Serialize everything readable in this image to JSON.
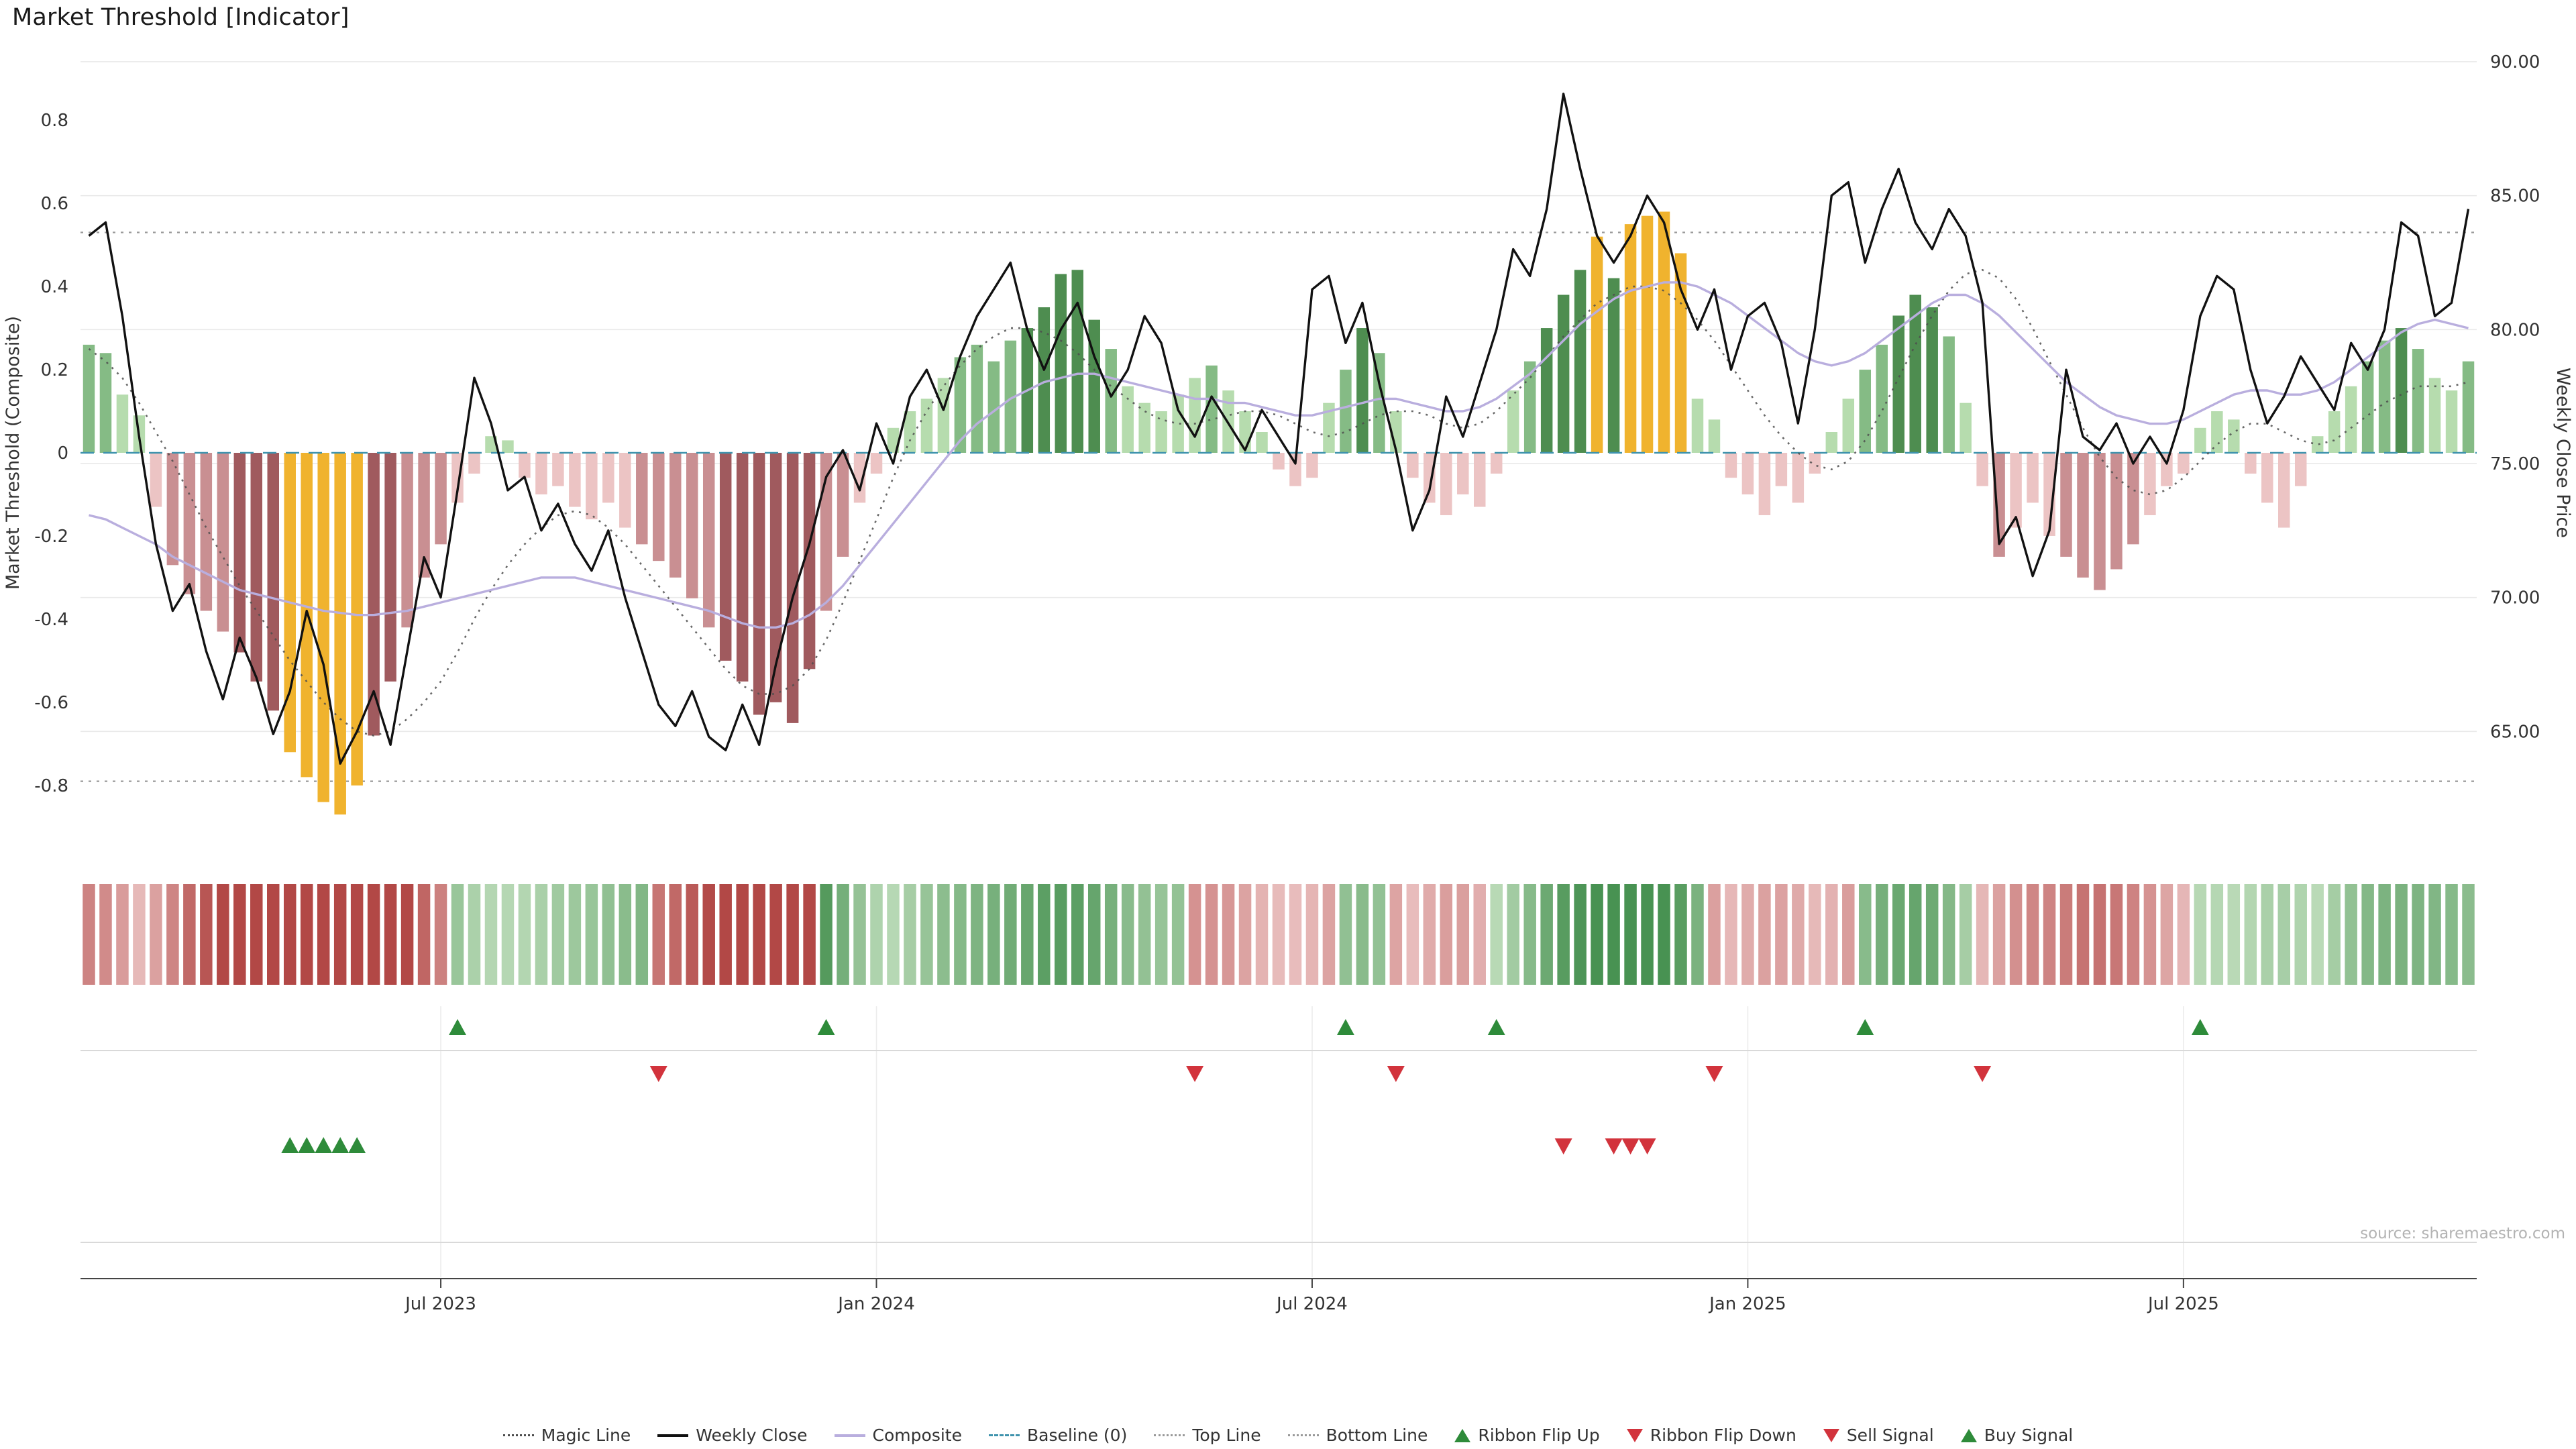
{
  "title": "Market Threshold [Indicator]",
  "source": "source: sharemaestro.com",
  "axes": {
    "left_label": "Market Threshold (Composite)",
    "right_label": "Weekly Close Price",
    "left_ticks": [
      {
        "label": "0.8",
        "value": 0.8
      },
      {
        "label": "0.6",
        "value": 0.6
      },
      {
        "label": "0.4",
        "value": 0.4
      },
      {
        "label": "0.2",
        "value": 0.2
      },
      {
        "label": "0",
        "value": 0
      },
      {
        "label": "-0.2",
        "value": -0.2
      },
      {
        "label": "-0.4",
        "value": -0.4
      },
      {
        "label": "-0.6",
        "value": -0.6
      },
      {
        "label": "-0.8",
        "value": -0.8
      }
    ],
    "right_ticks": [
      {
        "label": "90.00",
        "value": 90
      },
      {
        "label": "85.00",
        "value": 85
      },
      {
        "label": "80.00",
        "value": 80
      },
      {
        "label": "75.00",
        "value": 75
      },
      {
        "label": "70.00",
        "value": 70
      },
      {
        "label": "65.00",
        "value": 65
      }
    ],
    "x_ticks": [
      {
        "label": "Jul 2023",
        "week": 21
      },
      {
        "label": "Jan 2024",
        "week": 47
      },
      {
        "label": "Jul 2024",
        "week": 73
      },
      {
        "label": "Jan 2025",
        "week": 99
      },
      {
        "label": "Jul 2025",
        "week": 125
      }
    ]
  },
  "chart_data": {
    "type": "bar",
    "title": "Market Threshold [Indicator]",
    "xlabel": "",
    "ylabel_left": "Market Threshold (Composite)",
    "ylabel_right": "Weekly Close Price",
    "x_unit": "week",
    "ylim_left": [
      -0.96,
      0.96
    ],
    "ylim_right": [
      60.5,
      90.3
    ],
    "reference_lines": {
      "baseline": 0,
      "top_line": 0.53,
      "bottom_line": -0.79
    },
    "composite_bars": [
      0.26,
      0.24,
      0.14,
      0.09,
      -0.13,
      -0.27,
      -0.34,
      -0.38,
      -0.43,
      -0.48,
      -0.55,
      -0.62,
      -0.72,
      -0.78,
      -0.84,
      -0.87,
      -0.8,
      -0.68,
      -0.55,
      -0.42,
      -0.3,
      -0.22,
      -0.12,
      -0.05,
      0.04,
      0.03,
      -0.06,
      -0.1,
      -0.08,
      -0.13,
      -0.16,
      -0.12,
      -0.18,
      -0.22,
      -0.26,
      -0.3,
      -0.35,
      -0.42,
      -0.5,
      -0.55,
      -0.63,
      -0.6,
      -0.65,
      -0.52,
      -0.38,
      -0.25,
      -0.12,
      -0.05,
      0.06,
      0.1,
      0.13,
      0.18,
      0.23,
      0.26,
      0.22,
      0.27,
      0.3,
      0.35,
      0.43,
      0.44,
      0.32,
      0.25,
      0.16,
      0.12,
      0.1,
      0.14,
      0.18,
      0.21,
      0.15,
      0.1,
      0.05,
      -0.04,
      -0.08,
      -0.06,
      0.12,
      0.2,
      0.3,
      0.24,
      0.1,
      -0.06,
      -0.12,
      -0.15,
      -0.1,
      -0.13,
      -0.05,
      0.15,
      0.22,
      0.3,
      0.38,
      0.44,
      0.52,
      0.42,
      0.55,
      0.57,
      0.58,
      0.48,
      0.13,
      0.08,
      -0.06,
      -0.1,
      -0.15,
      -0.08,
      -0.12,
      -0.05,
      0.05,
      0.13,
      0.2,
      0.26,
      0.33,
      0.38,
      0.35,
      0.28,
      0.12,
      -0.08,
      -0.25,
      -0.18,
      -0.12,
      -0.2,
      -0.25,
      -0.3,
      -0.33,
      -0.28,
      -0.22,
      -0.15,
      -0.08,
      -0.05,
      0.06,
      0.1,
      0.08,
      -0.05,
      -0.12,
      -0.18,
      -0.08,
      0.04,
      0.1,
      0.16,
      0.22,
      0.27,
      0.3,
      0.25,
      0.18,
      0.15,
      0.22
    ],
    "gold_bar_indices": [
      12,
      13,
      14,
      15,
      16,
      90,
      92,
      93,
      94,
      95
    ],
    "weekly_close": [
      83.5,
      84.0,
      80.5,
      76.0,
      72.0,
      69.5,
      70.5,
      68.0,
      66.2,
      68.5,
      67.0,
      64.9,
      66.5,
      69.5,
      67.5,
      63.8,
      65.0,
      66.5,
      64.5,
      68.0,
      71.5,
      70.0,
      74.0,
      78.2,
      76.5,
      74.0,
      74.5,
      72.5,
      73.5,
      72.0,
      71.0,
      72.5,
      70.0,
      68.0,
      66.0,
      65.2,
      66.5,
      64.8,
      64.3,
      66.0,
      64.5,
      67.5,
      70.0,
      72.0,
      74.5,
      75.5,
      74.0,
      76.5,
      75.0,
      77.5,
      78.5,
      77.0,
      79.0,
      80.5,
      81.5,
      82.5,
      80.0,
      78.5,
      80.0,
      81.0,
      79.0,
      77.5,
      78.5,
      80.5,
      79.5,
      77.0,
      76.0,
      77.5,
      76.5,
      75.5,
      77.0,
      76.0,
      75.0,
      81.5,
      82.0,
      79.5,
      81.0,
      78.0,
      75.5,
      72.5,
      74.0,
      77.5,
      76.0,
      78.0,
      80.0,
      83.0,
      82.0,
      84.5,
      88.8,
      86.0,
      83.5,
      82.5,
      83.5,
      85.0,
      84.0,
      81.5,
      80.0,
      81.5,
      78.5,
      80.5,
      81.0,
      79.5,
      76.5,
      80.0,
      85.0,
      85.5,
      82.5,
      84.5,
      86.0,
      84.0,
      83.0,
      84.5,
      83.5,
      81.0,
      72.0,
      73.0,
      70.8,
      72.5,
      78.5,
      76.0,
      75.5,
      76.5,
      75.0,
      76.0,
      75.0,
      77.0,
      80.5,
      82.0,
      81.5,
      78.5,
      76.5,
      77.5,
      79.0,
      78.0,
      77.0,
      79.5,
      78.5,
      80.0,
      84.0,
      83.5,
      80.5,
      81.0,
      84.5
    ],
    "composite_line": [
      -0.15,
      -0.16,
      -0.18,
      -0.2,
      -0.22,
      -0.25,
      -0.27,
      -0.29,
      -0.31,
      -0.33,
      -0.34,
      -0.35,
      -0.36,
      -0.37,
      -0.38,
      -0.385,
      -0.39,
      -0.39,
      -0.385,
      -0.38,
      -0.37,
      -0.36,
      -0.35,
      -0.34,
      -0.33,
      -0.32,
      -0.31,
      -0.3,
      -0.3,
      -0.3,
      -0.31,
      -0.32,
      -0.33,
      -0.34,
      -0.35,
      -0.36,
      -0.37,
      -0.38,
      -0.395,
      -0.41,
      -0.42,
      -0.42,
      -0.41,
      -0.39,
      -0.36,
      -0.32,
      -0.27,
      -0.22,
      -0.17,
      -0.12,
      -0.07,
      -0.02,
      0.03,
      0.07,
      0.1,
      0.13,
      0.15,
      0.17,
      0.18,
      0.19,
      0.19,
      0.18,
      0.17,
      0.16,
      0.15,
      0.14,
      0.13,
      0.13,
      0.12,
      0.12,
      0.11,
      0.1,
      0.09,
      0.09,
      0.1,
      0.11,
      0.12,
      0.13,
      0.13,
      0.12,
      0.11,
      0.1,
      0.1,
      0.11,
      0.13,
      0.16,
      0.19,
      0.23,
      0.27,
      0.31,
      0.34,
      0.37,
      0.39,
      0.4,
      0.41,
      0.41,
      0.4,
      0.38,
      0.36,
      0.33,
      0.3,
      0.27,
      0.24,
      0.22,
      0.21,
      0.22,
      0.24,
      0.27,
      0.3,
      0.33,
      0.36,
      0.38,
      0.38,
      0.36,
      0.33,
      0.29,
      0.25,
      0.21,
      0.17,
      0.14,
      0.11,
      0.09,
      0.08,
      0.07,
      0.07,
      0.08,
      0.1,
      0.12,
      0.14,
      0.15,
      0.15,
      0.14,
      0.14,
      0.15,
      0.17,
      0.2,
      0.23,
      0.26,
      0.29,
      0.31,
      0.32,
      0.31,
      0.3
    ],
    "magic_line": [
      0.25,
      0.22,
      0.18,
      0.12,
      0.05,
      -0.02,
      -0.1,
      -0.18,
      -0.25,
      -0.32,
      -0.38,
      -0.44,
      -0.5,
      -0.55,
      -0.6,
      -0.64,
      -0.67,
      -0.68,
      -0.67,
      -0.64,
      -0.6,
      -0.55,
      -0.48,
      -0.4,
      -0.33,
      -0.27,
      -0.22,
      -0.18,
      -0.15,
      -0.14,
      -0.15,
      -0.18,
      -0.22,
      -0.27,
      -0.32,
      -0.37,
      -0.42,
      -0.47,
      -0.52,
      -0.56,
      -0.58,
      -0.58,
      -0.56,
      -0.52,
      -0.45,
      -0.36,
      -0.26,
      -0.16,
      -0.06,
      0.03,
      0.1,
      0.16,
      0.21,
      0.25,
      0.28,
      0.3,
      0.3,
      0.29,
      0.27,
      0.24,
      0.2,
      0.16,
      0.13,
      0.1,
      0.08,
      0.07,
      0.07,
      0.08,
      0.09,
      0.1,
      0.1,
      0.09,
      0.07,
      0.05,
      0.04,
      0.05,
      0.07,
      0.09,
      0.1,
      0.1,
      0.09,
      0.07,
      0.06,
      0.07,
      0.1,
      0.14,
      0.18,
      0.23,
      0.28,
      0.32,
      0.36,
      0.38,
      0.4,
      0.4,
      0.39,
      0.36,
      0.32,
      0.27,
      0.21,
      0.15,
      0.09,
      0.04,
      0.0,
      -0.03,
      -0.04,
      -0.02,
      0.03,
      0.1,
      0.18,
      0.26,
      0.33,
      0.39,
      0.43,
      0.44,
      0.42,
      0.37,
      0.3,
      0.22,
      0.14,
      0.06,
      -0.01,
      -0.06,
      -0.09,
      -0.1,
      -0.09,
      -0.06,
      -0.02,
      0.02,
      0.05,
      0.07,
      0.07,
      0.05,
      0.03,
      0.02,
      0.03,
      0.06,
      0.09,
      0.12,
      0.14,
      0.16,
      0.16,
      0.16,
      0.17
    ],
    "signals": {
      "ribbon_flip_up": [
        22,
        44,
        75,
        84,
        106,
        126
      ],
      "ribbon_flip_down": [
        34,
        66,
        78,
        97,
        113
      ],
      "buy": [
        12,
        13,
        14,
        15,
        16
      ],
      "sell": [
        88,
        91,
        92,
        93
      ]
    }
  },
  "colors": {
    "pos_dark": "#4e8d50",
    "pos_mid": "#85bb85",
    "pos_light": "#b6dcae",
    "neg_dark": "#a05a5e",
    "neg_mid": "#c98f92",
    "neg_light": "#ecc4c4",
    "gold": "#f0b32e",
    "close_line": "#111111",
    "composite_line": "#b9aede",
    "magic_line": "#4d4d4d",
    "baseline": "#3f93ad",
    "top_bottom": "#999999",
    "ribbon_green_light": "#d6ecd0",
    "ribbon_green_dark": "#489252",
    "ribbon_red_light": "#f4d6d6",
    "ribbon_red_dark": "#b24846",
    "signal_green": "#2e8b3a",
    "signal_red": "#d2333c",
    "grid": "#e9e9e9",
    "axis_text": "#333333",
    "axis_line": "#444444",
    "lane_line": "#d9d9d9",
    "panel_grid": "#ececec",
    "source_text": "#b3b3b3"
  },
  "legend": [
    {
      "label": "Magic Line",
      "swatch": "dotted",
      "color": "#4d4d4d"
    },
    {
      "label": "Weekly Close",
      "swatch": "solid",
      "color": "#111111"
    },
    {
      "label": "Composite",
      "swatch": "solid",
      "color": "#b9aede"
    },
    {
      "label": "Baseline (0)",
      "swatch": "dashed",
      "color": "#3f93ad"
    },
    {
      "label": "Top Line",
      "swatch": "dotted",
      "color": "#999999"
    },
    {
      "label": "Bottom Line",
      "swatch": "dotted",
      "color": "#999999"
    },
    {
      "label": "Ribbon Flip Up",
      "swatch": "tri-up",
      "color": "#2e8b3a"
    },
    {
      "label": "Ribbon Flip Down",
      "swatch": "tri-down",
      "color": "#d2333c"
    },
    {
      "label": "Sell Signal",
      "swatch": "tri-down",
      "color": "#d2333c"
    },
    {
      "label": "Buy Signal",
      "swatch": "tri-up",
      "color": "#2e8b3a"
    }
  ]
}
